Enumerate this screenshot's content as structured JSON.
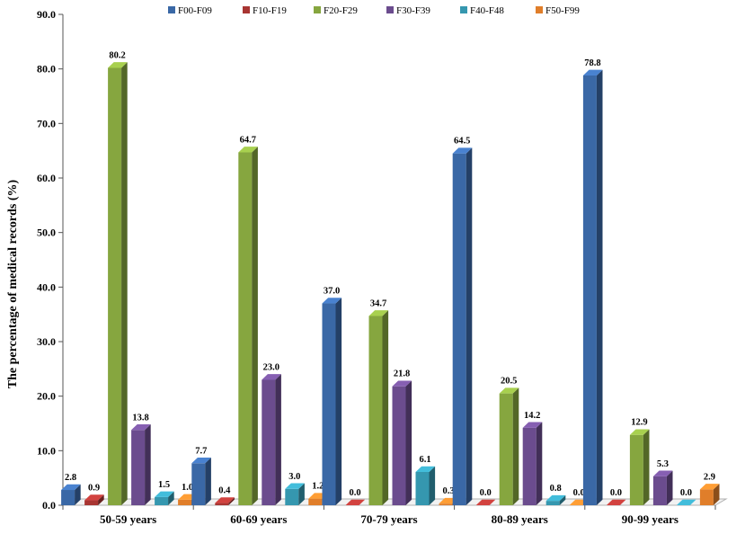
{
  "chart_data": {
    "type": "bar",
    "title": "",
    "xlabel": "",
    "ylabel": "The percentage of medical records (%)",
    "ylim": [
      0,
      90
    ],
    "yticks": [
      "0.0",
      "10.0",
      "20.0",
      "30.0",
      "40.0",
      "50.0",
      "60.0",
      "70.0",
      "80.0",
      "90.0"
    ],
    "categories": [
      "50-59 years",
      "60-69 years",
      "70-79 years",
      "80-89 years",
      "90-99 years"
    ],
    "series": [
      {
        "name": "F00-F09",
        "color": "#3A68A6",
        "values": [
          2.8,
          7.7,
          37.0,
          64.5,
          78.8
        ],
        "labels": [
          "2.8",
          "7.7",
          "37.0",
          "64.5",
          "78.8"
        ]
      },
      {
        "name": "F10-F19",
        "color": "#A83532",
        "values": [
          0.9,
          0.4,
          0.0,
          0.0,
          0.0
        ],
        "labels": [
          "0.9",
          "0.4",
          "0.0",
          "0.0",
          "0.0"
        ]
      },
      {
        "name": "F20-F29",
        "color": "#86A63F",
        "values": [
          80.2,
          64.7,
          34.7,
          20.5,
          12.9
        ],
        "labels": [
          "80.2",
          "64.7",
          "34.7",
          "20.5",
          "12.9"
        ]
      },
      {
        "name": "F30-F39",
        "color": "#6B4C8E",
        "values": [
          13.8,
          23.0,
          21.8,
          14.2,
          5.3
        ],
        "labels": [
          "13.8",
          "23.0",
          "21.8",
          "14.2",
          "5.3"
        ]
      },
      {
        "name": "F40-F48",
        "color": "#3597AF",
        "values": [
          1.5,
          3.0,
          6.1,
          0.8,
          0.0
        ],
        "labels": [
          "1.5",
          "3.0",
          "6.1",
          "0.8",
          "0.0"
        ]
      },
      {
        "name": "F50-F99",
        "color": "#E07E2A",
        "values": [
          1.0,
          1.2,
          0.3,
          0.0,
          2.9
        ],
        "labels": [
          "1.0",
          "1.2",
          "0.3",
          "0.0",
          "2.9"
        ]
      }
    ],
    "legend_position": "top",
    "grid": false
  }
}
